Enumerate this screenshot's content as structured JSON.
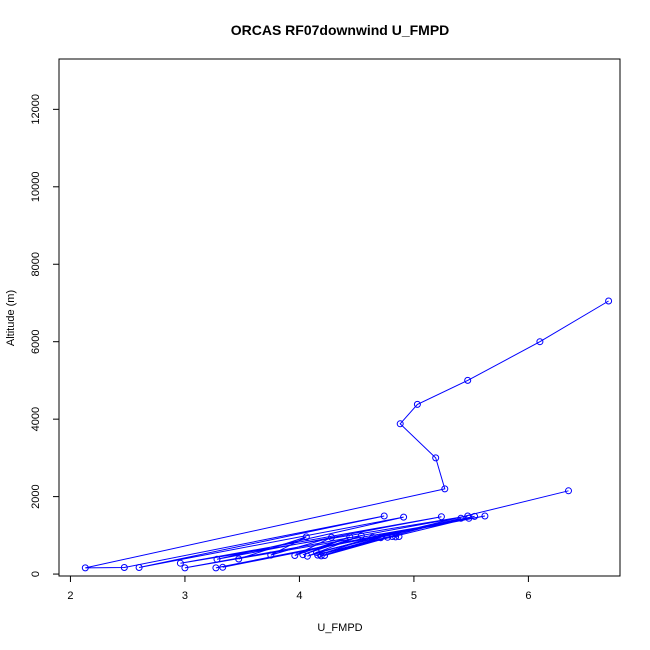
{
  "chart_data": {
    "type": "line",
    "title": "ORCAS RF07downwind U_FMPD",
    "xlabel": "U_FMPD",
    "ylabel": "Altitude (m)",
    "xlim": [
      1.9,
      6.8
    ],
    "ylim": [
      -50,
      13300
    ],
    "xticks": [
      "2",
      "3",
      "4",
      "5",
      "6"
    ],
    "yticks": [
      "0",
      "2000",
      "4000",
      "6000",
      "8000",
      "10000",
      "12000"
    ],
    "grid": false,
    "legend": "none",
    "series_color": "#0000ff",
    "series": [
      {
        "points": [
          [
            6.7,
            7050
          ],
          [
            6.1,
            6000
          ],
          [
            5.47,
            5000
          ],
          [
            5.03,
            4380
          ],
          [
            4.88,
            3880
          ],
          [
            5.19,
            3000
          ],
          [
            5.27,
            2200
          ],
          [
            2.13,
            160
          ],
          [
            2.47,
            170
          ],
          [
            4.74,
            1500
          ],
          [
            2.6,
            170
          ],
          [
            4.91,
            1470
          ],
          [
            3.28,
            380
          ],
          [
            5.24,
            1480
          ],
          [
            2.96,
            280
          ],
          [
            5.47,
            1500
          ],
          [
            3.0,
            160
          ],
          [
            5.62,
            1500
          ],
          [
            3.27,
            160
          ],
          [
            5.53,
            1490
          ],
          [
            3.33,
            175
          ],
          [
            5.48,
            1440
          ],
          [
            4.18,
            510
          ],
          [
            5.41,
            1440
          ],
          [
            4.15,
            560
          ],
          [
            6.35,
            2150
          ]
        ]
      },
      {
        "points": [
          [
            3.47,
            390
          ],
          [
            4.06,
            960
          ],
          [
            3.75,
            490
          ],
          [
            4.28,
            950
          ],
          [
            3.96,
            480
          ],
          [
            4.44,
            960
          ],
          [
            4.03,
            500
          ],
          [
            4.54,
            990
          ],
          [
            4.07,
            460
          ],
          [
            4.64,
            950
          ],
          [
            4.16,
            490
          ],
          [
            4.71,
            940
          ],
          [
            4.19,
            470
          ],
          [
            4.77,
            950
          ],
          [
            4.22,
            480
          ],
          [
            4.81,
            970
          ],
          [
            4.84,
            960
          ],
          [
            4.87,
            970
          ]
        ]
      }
    ]
  }
}
